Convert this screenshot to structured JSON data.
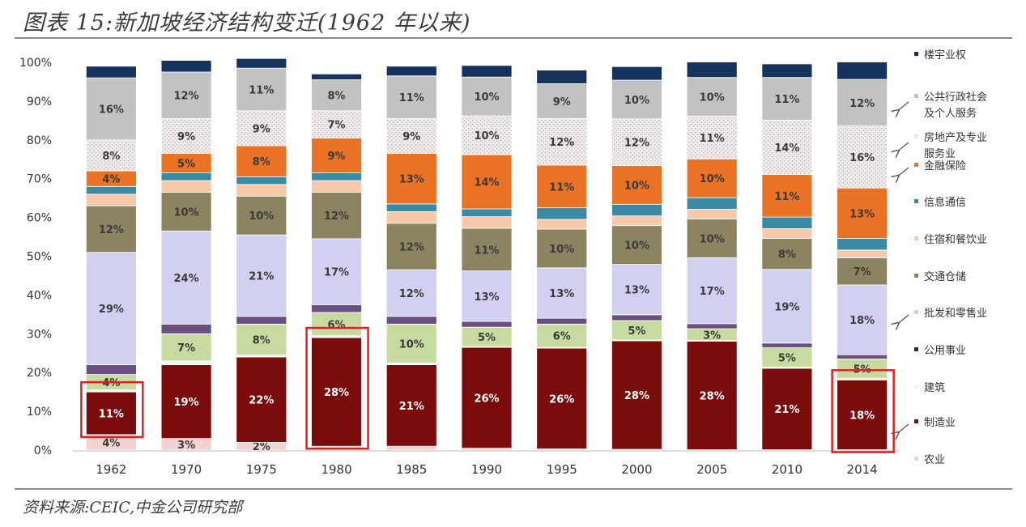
{
  "title": "图表 15:新加坡经济结构变迁(1962 年以来)",
  "source": "资料来源:CEIC,中金公司研究部",
  "chart_data": {
    "type": "bar",
    "stacked": true,
    "categories": [
      "1962",
      "1970",
      "1975",
      "1980",
      "1985",
      "1990",
      "1995",
      "2000",
      "2005",
      "2010",
      "2014"
    ],
    "ylim": [
      0,
      100
    ],
    "yticks": [
      "0%",
      "10%",
      "20%",
      "30%",
      "40%",
      "50%",
      "60%",
      "70%",
      "80%",
      "90%",
      "100%"
    ],
    "legend_position": "right",
    "series": [
      {
        "name": "农业",
        "color": "#f2d3d2",
        "values": [
          4,
          3,
          2,
          1,
          1,
          0.5,
          0.3,
          0.2,
          0.1,
          0.1,
          0.1
        ],
        "labels": [
          "4%",
          "3%",
          "2%",
          "",
          "",
          "",
          "",
          "",
          "",
          "",
          ""
        ]
      },
      {
        "name": "制造业",
        "color": "#7a0c0c",
        "values": [
          11,
          19,
          22,
          28,
          21,
          26,
          26,
          28,
          28,
          21,
          18
        ],
        "labels": [
          "11%",
          "19%",
          "22%",
          "28%",
          "21%",
          "26%",
          "26%",
          "28%",
          "28%",
          "21%",
          "18%"
        ]
      },
      {
        "name": "建筑",
        "color": "#f3f3ec",
        "values": [
          0.5,
          1,
          0.5,
          0.5,
          0.5,
          0.2,
          0.2,
          0.2,
          0.2,
          0.3,
          0.4
        ],
        "labels": [
          "",
          "",
          "",
          "",
          "",
          "",
          "",
          "",
          "",
          "",
          ""
        ]
      },
      {
        "name": "公用事业",
        "color": "#14325c",
        "values": [
          0,
          0,
          0,
          0,
          0,
          0,
          0,
          0,
          0,
          0,
          0
        ],
        "labels": [
          "",
          "",
          "",
          "",
          "",
          "",
          "",
          "",
          "",
          "",
          ""
        ]
      },
      {
        "name": "",
        "color": "#c7dba0",
        "values": [
          4,
          7,
          8,
          6,
          10,
          5,
          6,
          5,
          3,
          5,
          5
        ],
        "labels": [
          "4%",
          "7%",
          "8%",
          "6%",
          "10%",
          "5%",
          "6%",
          "5%",
          "3%",
          "5%",
          "5%"
        ]
      },
      {
        "name": "",
        "color": "#6a4f83",
        "values": [
          2.5,
          2.5,
          2,
          2,
          2,
          1.5,
          1.5,
          1.5,
          1.3,
          1.2,
          1.1
        ],
        "labels": [
          "",
          "",
          "",
          "",
          "",
          "",
          "",
          "",
          "",
          "",
          ""
        ]
      },
      {
        "name": "批发和零售业",
        "color": "#d2d0f0",
        "values": [
          29,
          24,
          21,
          17,
          12,
          13,
          13,
          13,
          17,
          19,
          18
        ],
        "labels": [
          "29%",
          "24%",
          "21%",
          "17%",
          "12%",
          "13%",
          "13%",
          "13%",
          "17%",
          "19%",
          "18%"
        ]
      },
      {
        "name": "交通仓储",
        "color": "#8c8460",
        "values": [
          12,
          10,
          10,
          12,
          12,
          11,
          10,
          10,
          10,
          8,
          7
        ],
        "labels": [
          "12%",
          "10%",
          "10%",
          "12%",
          "12%",
          "11%",
          "10%",
          "10%",
          "10%",
          "8%",
          "7%"
        ]
      },
      {
        "name": "住宿和餐饮业",
        "color": "#f7c9a8",
        "values": [
          3,
          3,
          3,
          3,
          3,
          3,
          2.5,
          2.5,
          2.5,
          2.5,
          2
        ],
        "labels": [
          "",
          "",
          "",
          "",
          "",
          "",
          "",
          "",
          "",
          "",
          ""
        ]
      },
      {
        "name": "信息通信",
        "color": "#3b8aa4",
        "values": [
          2,
          2,
          2,
          2,
          2,
          2,
          3,
          3,
          3,
          3,
          3
        ],
        "labels": [
          "",
          "",
          "",
          "",
          "",
          "",
          "",
          "",
          "",
          "",
          ""
        ]
      },
      {
        "name": "金融保险",
        "color": "#ea7224",
        "values": [
          4,
          5,
          8,
          9,
          13,
          14,
          11,
          10,
          10,
          11,
          13
        ],
        "labels": [
          "4%",
          "5%",
          "8%",
          "9%",
          "13%",
          "14%",
          "11%",
          "10%",
          "10%",
          "11%",
          "13%"
        ]
      },
      {
        "name": "房地产及专业服务业",
        "color": "#ece8e6",
        "values": [
          8,
          9,
          9,
          7,
          9,
          10,
          12,
          12,
          11,
          14,
          16
        ],
        "labels": [
          "8%",
          "9%",
          "9%",
          "7%",
          "9%",
          "10%",
          "12%",
          "12%",
          "11%",
          "14%",
          "16%"
        ]
      },
      {
        "name": "公共行政社会及个人服务",
        "color": "#c3c2c2",
        "values": [
          16,
          12,
          11,
          8,
          11,
          10,
          9,
          10,
          10,
          11,
          12
        ],
        "labels": [
          "16%",
          "12%",
          "11%",
          "8%",
          "11%",
          "10%",
          "9%",
          "10%",
          "10%",
          "11%",
          "12%"
        ]
      },
      {
        "name": "楼宇业权",
        "color": "#16335e",
        "values": [
          3,
          3,
          2.5,
          1.5,
          2.5,
          3,
          3.5,
          3.5,
          4,
          3.5,
          4.5
        ],
        "labels": [
          "",
          "",
          "",
          "",
          "",
          "",
          "",
          "",
          "",
          "",
          ""
        ]
      }
    ],
    "legend": [
      {
        "text": "楼宇业权",
        "arrow": false
      },
      {
        "text": "公共行政社会\n及个人服务",
        "arrow": true
      },
      {
        "text": "房地产及专业\n服务业",
        "arrow": true
      },
      {
        "text": "金融保险",
        "arrow": true
      },
      {
        "text": "信息通信",
        "arrow": false
      },
      {
        "text": "住宿和餐饮业",
        "arrow": false
      },
      {
        "text": "交通仓储",
        "arrow": false
      },
      {
        "text": "批发和零售业",
        "arrow": true
      },
      {
        "text": "公用事业",
        "arrow": false
      },
      {
        "text": "建筑",
        "arrow": false
      },
      {
        "text": "制造业",
        "arrow": true
      },
      {
        "text": "农业",
        "arrow": false
      }
    ],
    "highlighted_categories": [
      "1962",
      "1980",
      "2014"
    ],
    "highlight_color": "#e02020"
  }
}
